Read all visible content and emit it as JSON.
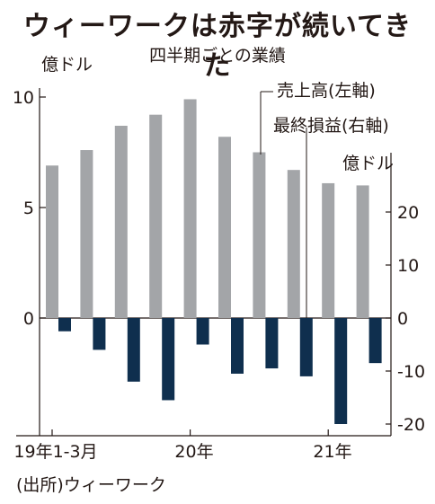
{
  "title": "ウィーワークは赤字が続いてきた",
  "subtitle": "四半期ごとの業績",
  "source": "(出所)ウィーワーク",
  "colors": {
    "revenue": "#a3a5a8",
    "loss": "#0f2f4e",
    "axis": "#231815"
  },
  "chart_data": {
    "type": "bar",
    "dual_axis": true,
    "x_labels": [
      "19年1-3月",
      "20年",
      "21年"
    ],
    "left_axis": {
      "unit": "億ドル",
      "ticks": [
        "10",
        "5",
        "0"
      ],
      "range": [
        -5.2,
        10.5
      ]
    },
    "right_axis": {
      "unit": "億ドル",
      "ticks": [
        "20",
        "10",
        "0",
        "-10",
        "-20"
      ],
      "range": [
        -22,
        25
      ]
    },
    "series": [
      {
        "name": "売上高(左軸)",
        "axis": "left",
        "values": [
          6.9,
          7.6,
          8.7,
          9.2,
          9.9,
          8.2,
          7.5,
          6.7,
          6.1,
          6.0
        ]
      },
      {
        "name": "最終損益(右軸)",
        "axis": "right",
        "values": [
          -2.5,
          -6.0,
          -12.0,
          -15.5,
          -5.0,
          -10.5,
          -9.5,
          -11.0,
          -20.0,
          -8.5
        ]
      }
    ]
  }
}
